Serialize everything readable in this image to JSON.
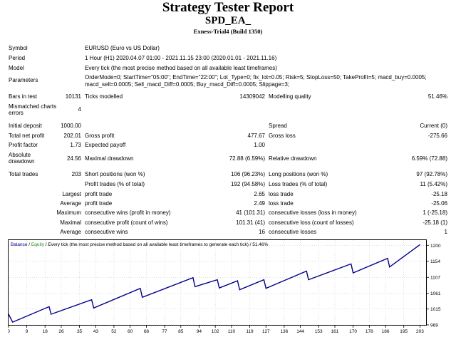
{
  "header": {
    "title": "Strategy Tester Report",
    "ea_name": "SPD_EA_",
    "account": "Exness-Trial4 (Build 1350)"
  },
  "info": {
    "symbol_label": "Symbol",
    "symbol_value": "EURUSD (Euro vs US Dollar)",
    "period_label": "Period",
    "period_value": "1 Hour (H1) 2020.04.07 01:00 - 2021.11.15 23:00 (2020.01.01 - 2021.11.16)",
    "model_label": "Model",
    "model_value": "Every tick (the most precise method based on all available least timeframes)",
    "params_label": "Parameters",
    "params_line1": "OrderMode=0; StartTime=\"05:00\"; EndTime=\"22:00\"; Lot_Type=0; fix_lot=0.05; Risk=5; StopLoss=50; TakeProfit=5; macd_buy=0.0005;",
    "params_line2": "macd_sell=0.0005; Sell_macd_Diff=0.0005; Buy_macd_Diff=0.0005; Slippage=3;"
  },
  "stats": {
    "bars_label": "Bars in test",
    "bars_value": "10131",
    "ticks_label": "Ticks modelled",
    "ticks_value": "14309042",
    "quality_label": "Modelling quality",
    "quality_value": "51.46%",
    "mismatch_label_1": "Mismatched charts",
    "mismatch_label_2": "errors",
    "mismatch_value": "4",
    "deposit_label": "Initial deposit",
    "deposit_value": "1000.00",
    "spread_label": "Spread",
    "spread_value": "Current (0)",
    "netprofit_label": "Total net profit",
    "netprofit_value": "202.01",
    "grossprofit_label": "Gross profit",
    "grossprofit_value": "477.67",
    "grossloss_label": "Gross loss",
    "grossloss_value": "-275.66",
    "pf_label": "Profit factor",
    "pf_value": "1.73",
    "payoff_label": "Expected payoff",
    "payoff_value": "1.00",
    "absdd_label_1": "Absolute",
    "absdd_label_2": "drawdown",
    "absdd_value": "24.56",
    "maxdd_label": "Maximal drawdown",
    "maxdd_value": "72.88 (6.59%)",
    "reldd_label": "Relative drawdown",
    "reldd_value": "6.59% (72.88)",
    "trades_label": "Total trades",
    "trades_value": "203",
    "short_label": "Short positions (won %)",
    "short_value": "106 (96.23%)",
    "long_label": "Long positions (won %)",
    "long_value": "97 (92.78%)",
    "ptrades_label": "Profit trades (% of total)",
    "ptrades_value": "192 (94.58%)",
    "ltrades_label": "Loss trades (% of total)",
    "ltrades_value": "11 (5.42%)",
    "largest_label": "Largest",
    "lpt_label": "profit trade",
    "lpt_value": "2.65",
    "llt_label": "loss trade",
    "llt_value": "-25.18",
    "average_label": "Average",
    "apt_label": "profit trade",
    "apt_value": "2.49",
    "alt_label": "loss trade",
    "alt_value": "-25.06",
    "maximum_label": "Maximum",
    "mcw_label": "consecutive wins (profit in money)",
    "mcw_value": "41 (101.31)",
    "mcl_label": "consecutive losses (loss in money)",
    "mcl_value": "1 (-25.18)",
    "maximal_label": "Maximal",
    "mcp_label": "consecutive profit (count of wins)",
    "mcp_value": "101.31 (41)",
    "mclc_label": "consecutive loss (count of losses)",
    "mclc_value": "-25.18 (1)",
    "average2_label": "Average",
    "acw_label": "consecutive wins",
    "acw_value": "16",
    "acl_label": "consecutive losses",
    "acl_value": "1"
  },
  "chart_data": {
    "type": "line",
    "legend_balance": "Balance",
    "legend_sep": " / ",
    "legend_equity": "Equity",
    "legend_rest": " / Every tick (the most precise method based on all available least timeframes to generate each tick) / 51.46%",
    "colors": {
      "balance": "#00008b",
      "equity": "#228b22",
      "grid": "#c0c0c0",
      "frame": "#000000"
    },
    "xlim": [
      0,
      206
    ],
    "ylim": [
      969,
      1215
    ],
    "x_ticks": [
      "0",
      "9",
      "18",
      "26",
      "35",
      "43",
      "52",
      "60",
      "68",
      "77",
      "85",
      "94",
      "102",
      "110",
      "119",
      "127",
      "136",
      "144",
      "153",
      "161",
      "170",
      "178",
      "186",
      "195",
      "203"
    ],
    "y_ticks": [
      "1200",
      "1154",
      "1107",
      "1061",
      "1015",
      "969"
    ],
    "series": [
      {
        "name": "Balance",
        "x": [
          0,
          2,
          20,
          21,
          41,
          42,
          65,
          66,
          91,
          92,
          103,
          104,
          113,
          114,
          126,
          127,
          147,
          148,
          169,
          170,
          187,
          188,
          203
        ],
        "y": [
          1000,
          977,
          1022,
          1000,
          1042,
          1018,
          1075,
          1049,
          1106,
          1080,
          1100,
          1076,
          1097,
          1071,
          1100,
          1075,
          1125,
          1100,
          1146,
          1120,
          1162,
          1137,
          1202
        ]
      }
    ]
  }
}
